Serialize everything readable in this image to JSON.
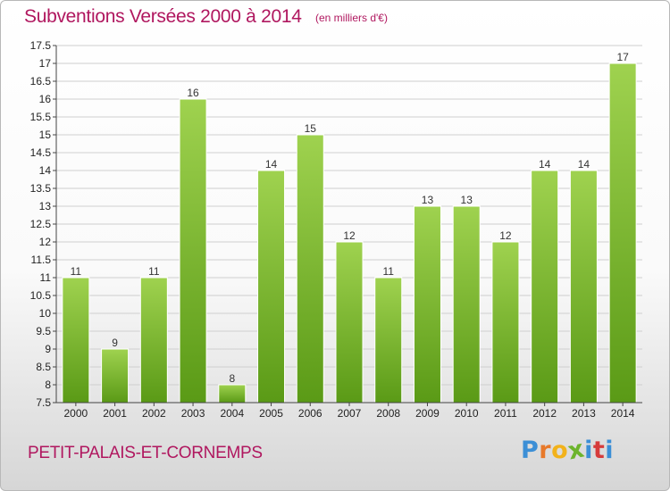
{
  "title": "Subventions Versées 2000 à 2014",
  "subtitle": "(en milliers d'€)",
  "commune": "PETIT-PALAIS-ET-CORNEMPS",
  "logo": {
    "letters": [
      "P",
      "r",
      "o",
      "x",
      "i",
      "t",
      "i"
    ],
    "colors": [
      "#3c8fd6",
      "#e8792a",
      "#f2b21b",
      "#6cb42c",
      "#3c8fd6",
      "#d63c3c",
      "#3c8fd6"
    ]
  },
  "colors": {
    "bar_top": "#9fd24f",
    "bar_bottom": "#5a9a16",
    "grid": "#cfcfcf",
    "title": "#b0175f"
  },
  "chart_data": {
    "type": "bar",
    "categories": [
      "2000",
      "2001",
      "2002",
      "2003",
      "2004",
      "2005",
      "2006",
      "2007",
      "2008",
      "2009",
      "2010",
      "2011",
      "2012",
      "2013",
      "2014"
    ],
    "values": [
      11,
      9,
      11,
      16,
      8,
      14,
      15,
      12,
      11,
      13,
      13,
      12,
      14,
      14,
      17
    ],
    "yticks": [
      "7.5",
      "8",
      "8.5",
      "9",
      "9.5",
      "10",
      "10.5",
      "11",
      "11.5",
      "12",
      "12.5",
      "13",
      "13.5",
      "14",
      "14.5",
      "15",
      "15.5",
      "16",
      "16.5",
      "17",
      "17.5"
    ],
    "ylim": [
      7.5,
      17.5
    ],
    "grid": true
  }
}
